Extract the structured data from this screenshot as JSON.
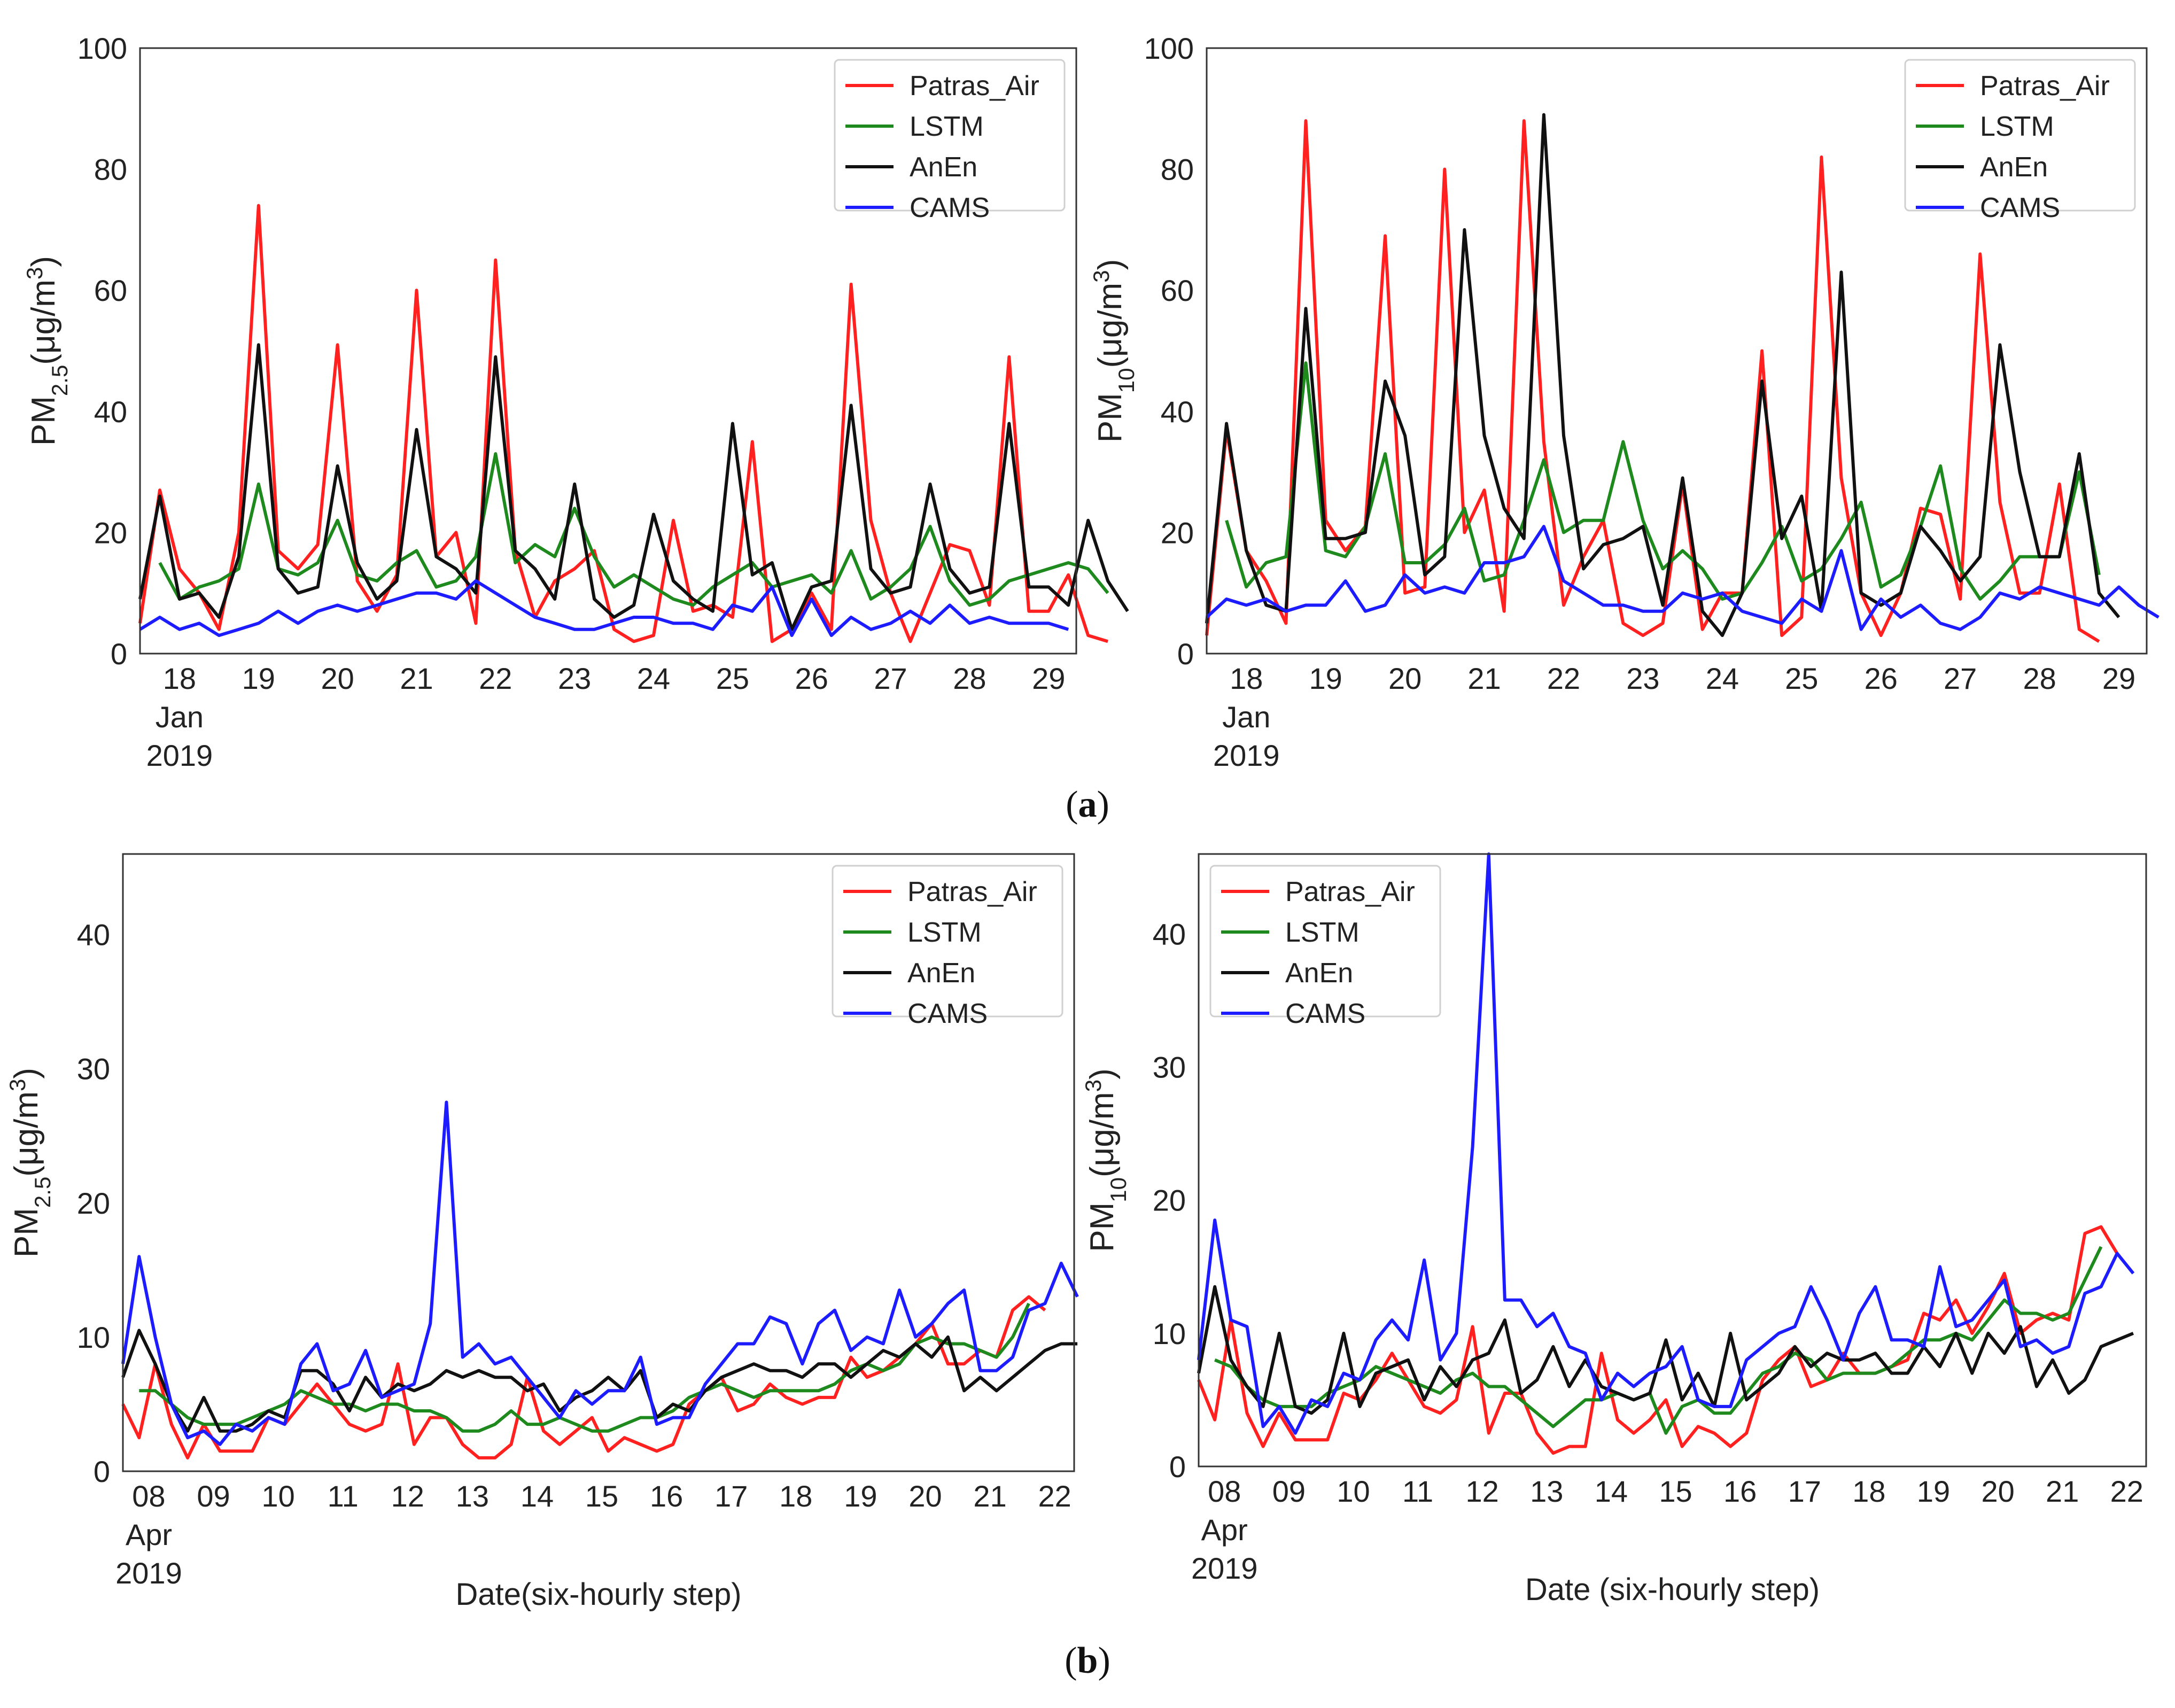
{
  "panel_labels": [
    "a",
    "b"
  ],
  "series_colors": {
    "Patras_Air": "#ff2020",
    "LSTM": "#1e8a1e",
    "AnEn": "#111111",
    "CAMS": "#1c1cff"
  },
  "chart_data": [
    {
      "type": "line",
      "title": "",
      "ylabel_main": "PM",
      "ylabel_sub": "2.5",
      "ylabel_rest": "(μg/m",
      "ylabel_sup": "3",
      "ylabel_close": ")",
      "xlabel": "",
      "ylim": [
        0,
        100
      ],
      "yticks": [
        0,
        20,
        40,
        60,
        80,
        100
      ],
      "xlim": [
        17.5,
        29.35
      ],
      "xticks": [
        18,
        19,
        20,
        21,
        22,
        23,
        24,
        25,
        26,
        27,
        28,
        29
      ],
      "xtick_labels": [
        "18",
        "19",
        "20",
        "21",
        "22",
        "23",
        "24",
        "25",
        "26",
        "27",
        "28",
        "29"
      ],
      "month_label": "Jan",
      "year_label": "2019",
      "legend_position": "top-right",
      "legend": [
        "Patras_Air",
        "LSTM",
        "AnEn",
        "CAMS"
      ],
      "x_start": 17.5,
      "x_step": 0.25,
      "series": [
        {
          "name": "Patras_Air",
          "values": [
            5,
            27,
            14,
            10,
            4,
            20,
            74,
            17,
            14,
            18,
            51,
            12,
            7,
            13,
            60,
            16,
            20,
            5,
            65,
            17,
            6,
            12,
            14,
            17,
            4,
            2,
            3,
            22,
            7,
            8,
            6,
            35,
            2,
            4,
            10,
            4,
            61,
            22,
            10,
            2,
            10,
            18,
            17,
            8,
            49,
            7,
            7,
            13,
            3,
            2
          ]
        },
        {
          "name": "LSTM",
          "values": [
            null,
            15,
            9,
            11,
            12,
            14,
            28,
            14,
            13,
            15,
            22,
            13,
            12,
            15,
            17,
            11,
            12,
            16,
            33,
            15,
            18,
            16,
            24,
            16,
            11,
            13,
            11,
            9,
            8,
            11,
            13,
            15,
            11,
            12,
            13,
            10,
            17,
            9,
            11,
            14,
            21,
            12,
            8,
            9,
            12,
            13,
            14,
            15,
            14,
            10
          ]
        },
        {
          "name": "AnEn",
          "values": [
            9,
            26,
            9,
            10,
            6,
            16,
            51,
            14,
            10,
            11,
            31,
            15,
            9,
            12,
            37,
            16,
            14,
            10,
            49,
            17,
            14,
            9,
            28,
            9,
            6,
            8,
            23,
            12,
            9,
            7,
            38,
            13,
            15,
            4,
            11,
            12,
            41,
            14,
            10,
            11,
            28,
            14,
            10,
            11,
            38,
            11,
            11,
            8,
            22,
            12,
            7
          ]
        },
        {
          "name": "CAMS",
          "values": [
            4,
            6,
            4,
            5,
            3,
            4,
            5,
            7,
            5,
            7,
            8,
            7,
            8,
            9,
            10,
            10,
            9,
            12,
            10,
            8,
            6,
            5,
            4,
            4,
            5,
            6,
            6,
            5,
            5,
            4,
            8,
            7,
            11,
            3,
            9,
            3,
            6,
            4,
            5,
            7,
            5,
            8,
            5,
            6,
            5,
            5,
            5,
            4
          ]
        }
      ]
    },
    {
      "type": "line",
      "title": "",
      "ylabel_main": "PM",
      "ylabel_sub": "10",
      "ylabel_rest": "(μg/m",
      "ylabel_sup": "3",
      "ylabel_close": ")",
      "xlabel": "",
      "ylim": [
        0,
        100
      ],
      "yticks": [
        0,
        20,
        40,
        60,
        80,
        100
      ],
      "xlim": [
        17.5,
        29.35
      ],
      "xticks": [
        18,
        19,
        20,
        21,
        22,
        23,
        24,
        25,
        26,
        27,
        28,
        29
      ],
      "xtick_labels": [
        "18",
        "19",
        "20",
        "21",
        "22",
        "23",
        "24",
        "25",
        "26",
        "27",
        "28",
        "29"
      ],
      "month_label": "Jan",
      "year_label": "2019",
      "legend_position": "top-right",
      "legend": [
        "Patras_Air",
        "LSTM",
        "AnEn",
        "CAMS"
      ],
      "x_start": 17.5,
      "x_step": 0.25,
      "series": [
        {
          "name": "Patras_Air",
          "values": [
            3,
            37,
            17,
            12,
            5,
            88,
            22,
            17,
            21,
            69,
            10,
            11,
            80,
            20,
            27,
            7,
            88,
            35,
            8,
            16,
            22,
            5,
            3,
            5,
            28,
            4,
            10,
            10,
            50,
            3,
            6,
            82,
            29,
            10,
            3,
            10,
            24,
            23,
            9,
            66,
            25,
            10,
            10,
            28,
            4,
            2
          ]
        },
        {
          "name": "LSTM",
          "values": [
            null,
            22,
            11,
            15,
            16,
            48,
            17,
            16,
            21,
            33,
            15,
            15,
            18,
            24,
            12,
            13,
            22,
            32,
            20,
            22,
            22,
            35,
            22,
            14,
            17,
            14,
            9,
            10,
            15,
            21,
            12,
            14,
            19,
            25,
            11,
            13,
            21,
            31,
            14,
            9,
            12,
            16,
            16,
            16,
            30,
            13
          ]
        },
        {
          "name": "AnEn",
          "values": [
            5,
            38,
            17,
            8,
            7,
            57,
            19,
            19,
            20,
            45,
            36,
            13,
            16,
            70,
            36,
            24,
            19,
            89,
            36,
            14,
            18,
            19,
            21,
            8,
            29,
            7,
            3,
            10,
            45,
            19,
            26,
            7,
            63,
            10,
            8,
            10,
            21,
            17,
            12,
            16,
            51,
            30,
            16,
            16,
            33,
            10,
            6
          ]
        },
        {
          "name": "CAMS",
          "values": [
            6,
            9,
            8,
            9,
            7,
            8,
            8,
            12,
            7,
            8,
            13,
            10,
            11,
            10,
            15,
            15,
            16,
            21,
            12,
            10,
            8,
            8,
            7,
            7,
            10,
            9,
            10,
            7,
            6,
            5,
            9,
            7,
            17,
            4,
            9,
            6,
            8,
            5,
            4,
            6,
            10,
            9,
            11,
            10,
            9,
            8,
            11,
            8,
            6
          ]
        }
      ]
    },
    {
      "type": "line",
      "title": "",
      "ylabel_main": "PM",
      "ylabel_sub": "2.5",
      "ylabel_rest": "(μg/m",
      "ylabel_sup": "3",
      "ylabel_close": ")",
      "xlabel": "Date(six-hourly step)",
      "ylim": [
        0,
        46
      ],
      "yticks": [
        0,
        10,
        20,
        30,
        40
      ],
      "xlim": [
        7.6,
        22.3
      ],
      "xticks": [
        8,
        9,
        10,
        11,
        12,
        13,
        14,
        15,
        16,
        17,
        18,
        19,
        20,
        21,
        22
      ],
      "xtick_labels": [
        "08",
        "09",
        "10",
        "11",
        "12",
        "13",
        "14",
        "15",
        "16",
        "17",
        "18",
        "19",
        "20",
        "21",
        "22"
      ],
      "month_label": "Apr",
      "year_label": "2019",
      "legend_position": "top-right",
      "legend": [
        "Patras_Air",
        "LSTM",
        "AnEn",
        "CAMS"
      ],
      "x_start": 7.6,
      "x_step": 0.25,
      "series": [
        {
          "name": "Patras_Air",
          "values": [
            5,
            2.5,
            8,
            3.5,
            1,
            3.5,
            1.5,
            1.5,
            1.5,
            4,
            3.5,
            5,
            6.5,
            5,
            3.5,
            3,
            3.5,
            8,
            2,
            4,
            4,
            2,
            1,
            1,
            2,
            7,
            3,
            2,
            3,
            4,
            1.5,
            2.5,
            2,
            1.5,
            2,
            5,
            6,
            7,
            4.5,
            5,
            6.5,
            5.5,
            5,
            5.5,
            5.5,
            8.5,
            7,
            7.5,
            8.5,
            9.5,
            11,
            8,
            8,
            9,
            8.5,
            12,
            13,
            12
          ]
        },
        {
          "name": "LSTM",
          "values": [
            null,
            6,
            6,
            5,
            4,
            3.5,
            3.5,
            3.5,
            4,
            4.5,
            5,
            6,
            5.5,
            5,
            5,
            4.5,
            5,
            5,
            4.5,
            4.5,
            4,
            3,
            3,
            3.5,
            4.5,
            3.5,
            3.5,
            4,
            3.5,
            3,
            3,
            3.5,
            4,
            4,
            4.5,
            5.5,
            6,
            6.5,
            6,
            5.5,
            6,
            6,
            6,
            6,
            6.5,
            7.5,
            8,
            7.5,
            8,
            9.5,
            10,
            9.5,
            9.5,
            9,
            8.5,
            10,
            12.5
          ]
        },
        {
          "name": "AnEn",
          "values": [
            7,
            10.5,
            8,
            5,
            3,
            5.5,
            3,
            3,
            3.5,
            4.5,
            4,
            7.5,
            7.5,
            6.5,
            4.5,
            7,
            5.5,
            6.5,
            6,
            6.5,
            7.5,
            7,
            7.5,
            7,
            7,
            6,
            6.5,
            4.5,
            5.5,
            6,
            7,
            6,
            7.5,
            4,
            5,
            4.5,
            6,
            7,
            7.5,
            8,
            7.5,
            7.5,
            7,
            8,
            8,
            7,
            8,
            9,
            8.5,
            9.5,
            8.5,
            10,
            6,
            7,
            6,
            7,
            8,
            9,
            9.5,
            9.5
          ]
        },
        {
          "name": "CAMS",
          "values": [
            8,
            16,
            10,
            5,
            2.5,
            3,
            2,
            3.5,
            3,
            4,
            3.5,
            8,
            9.5,
            6,
            6.5,
            9,
            5.5,
            6,
            6.5,
            11,
            27.5,
            8.5,
            9.5,
            8,
            8.5,
            7,
            5.5,
            4,
            6,
            5,
            6,
            6,
            8.5,
            3.5,
            4,
            4,
            6.5,
            8,
            9.5,
            9.5,
            11.5,
            11,
            8,
            11,
            12,
            9,
            10,
            9.5,
            13.5,
            10,
            11,
            12.5,
            13.5,
            7.5,
            7.5,
            8.5,
            12,
            12.5,
            15.5,
            13
          ]
        }
      ]
    },
    {
      "type": "line",
      "title": "",
      "ylabel_main": "PM",
      "ylabel_sub": "10",
      "ylabel_rest": "(μg/m",
      "ylabel_sup": "3",
      "ylabel_close": ")",
      "xlabel": "Date (six-hourly step)",
      "ylim": [
        0,
        46
      ],
      "yticks": [
        0,
        10,
        20,
        30,
        40
      ],
      "xlim": [
        7.6,
        22.3
      ],
      "xticks": [
        8,
        9,
        10,
        11,
        12,
        13,
        14,
        15,
        16,
        17,
        18,
        19,
        20,
        21,
        22
      ],
      "xtick_labels": [
        "08",
        "09",
        "10",
        "11",
        "12",
        "13",
        "14",
        "15",
        "16",
        "17",
        "18",
        "19",
        "20",
        "21",
        "22"
      ],
      "month_label": "Apr",
      "year_label": "2019",
      "legend_position": "top-left",
      "legend": [
        "Patras_Air",
        "LSTM",
        "AnEn",
        "CAMS"
      ],
      "x_start": 7.6,
      "x_step": 0.25,
      "series": [
        {
          "name": "Patras_Air",
          "values": [
            6.5,
            3.5,
            11,
            4,
            1.5,
            4,
            2,
            2,
            2,
            5.5,
            5,
            6.5,
            8.5,
            6.5,
            4.5,
            4,
            5,
            10.5,
            2.5,
            5.5,
            5.5,
            2.5,
            1,
            1.5,
            1.5,
            8.5,
            3.5,
            2.5,
            3.5,
            5,
            1.5,
            3,
            2.5,
            1.5,
            2.5,
            6.5,
            8,
            9,
            6,
            6.5,
            8.5,
            7,
            7,
            7.5,
            8,
            11.5,
            11,
            12.5,
            10,
            12,
            14.5,
            10,
            11,
            11.5,
            11,
            17.5,
            18,
            16
          ]
        },
        {
          "name": "LSTM",
          "values": [
            null,
            8,
            7.5,
            6,
            5,
            4.5,
            4.5,
            4.5,
            5.5,
            6,
            6.5,
            7.5,
            7,
            6.5,
            6,
            5.5,
            6.5,
            7,
            6,
            6,
            5,
            4,
            3,
            4,
            5,
            5,
            5.5,
            5,
            5.5,
            2.5,
            4.5,
            5,
            4,
            4,
            5.5,
            7,
            7.5,
            8.5,
            8,
            6.5,
            7,
            7,
            7,
            7.5,
            8.5,
            9.5,
            9.5,
            10,
            9.5,
            11,
            12.5,
            11.5,
            11.5,
            11,
            11.5,
            14,
            16.5
          ]
        },
        {
          "name": "AnEn",
          "values": [
            7,
            13.5,
            8,
            6,
            4.5,
            10,
            4.5,
            4,
            5,
            10,
            4.5,
            7,
            7.5,
            8,
            5,
            7.5,
            6,
            8,
            8.5,
            11,
            5.5,
            6.5,
            9,
            6,
            8,
            6,
            5.5,
            5,
            5.5,
            9.5,
            5,
            7,
            4.5,
            10,
            5,
            6,
            7,
            9,
            7.5,
            8.5,
            8,
            8,
            8.5,
            7,
            7,
            9,
            7.5,
            10,
            7,
            10,
            8.5,
            10.5,
            6,
            8,
            5.5,
            6.5,
            9,
            9.5,
            10
          ]
        },
        {
          "name": "CAMS",
          "values": [
            8,
            18.5,
            11,
            10.5,
            3,
            4.5,
            2.5,
            5,
            4.5,
            7,
            6.5,
            9.5,
            11,
            9.5,
            15.5,
            8,
            10,
            24,
            47,
            12.5,
            12.5,
            10.5,
            11.5,
            9,
            8.5,
            5,
            7,
            6,
            7,
            7.5,
            9,
            5,
            4.5,
            4.5,
            8,
            9,
            10,
            10.5,
            13.5,
            11,
            8,
            11.5,
            13.5,
            9.5,
            9.5,
            9,
            15,
            10.5,
            11,
            12.5,
            14,
            9,
            9.5,
            8.5,
            9,
            13,
            13.5,
            16,
            14.5
          ]
        }
      ]
    }
  ]
}
